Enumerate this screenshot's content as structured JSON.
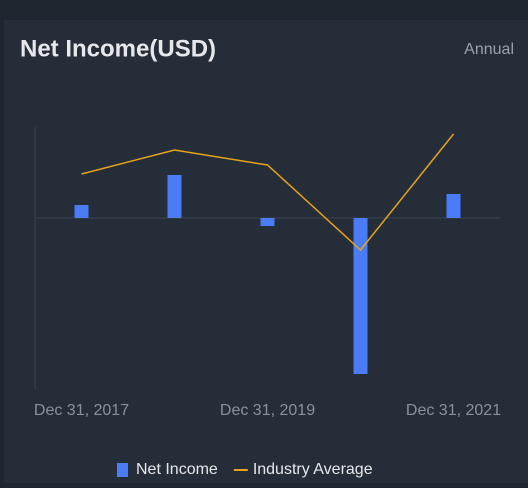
{
  "chart_data": {
    "type": "bar",
    "title": "Net Income(USD)",
    "period": "Annual",
    "categories": [
      "Dec 31, 2017",
      null,
      "Dec 31, 2019",
      null,
      "Dec 31, 2021"
    ],
    "series": [
      {
        "name": "Net Income",
        "type": "bar",
        "color": "#4a7cf7",
        "values": [
          13,
          43,
          -8,
          -156,
          24
        ]
      },
      {
        "name": "Industry Average",
        "type": "line",
        "color": "#e8a317",
        "values": [
          44,
          68,
          53,
          -32,
          84
        ]
      }
    ],
    "ylim": [
      -172,
      91
    ]
  }
}
